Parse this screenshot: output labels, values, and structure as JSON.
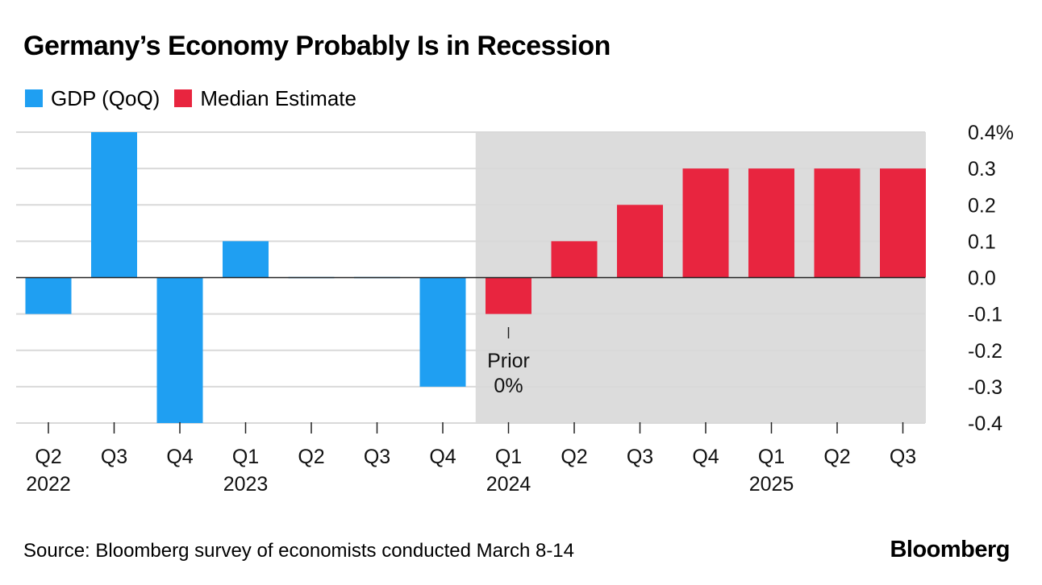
{
  "title": "Germany’s Economy Probably Is in Recession",
  "source": "Source: Bloomberg survey of economists conducted March 8-14",
  "brand": "Bloomberg",
  "colors": {
    "gdp": "#1f9ff2",
    "estimate": "#e8253f",
    "shade": "#dcdcdc",
    "grid": "#d9d9d9"
  },
  "chart_data": {
    "type": "bar",
    "title": "Germany’s Economy Probably Is in Recession",
    "xlabel": "",
    "ylabel": "",
    "ylim": [
      -0.4,
      0.4
    ],
    "yticks": [
      {
        "value": 0.4,
        "label": "0.4%"
      },
      {
        "value": 0.3,
        "label": "0.3"
      },
      {
        "value": 0.2,
        "label": "0.2"
      },
      {
        "value": 0.1,
        "label": "0.1"
      },
      {
        "value": 0.0,
        "label": "0.0"
      },
      {
        "value": -0.1,
        "label": "-0.1"
      },
      {
        "value": -0.2,
        "label": "-0.2"
      },
      {
        "value": -0.3,
        "label": "-0.3"
      },
      {
        "value": -0.4,
        "label": "-0.4"
      }
    ],
    "categories": [
      "Q2",
      "Q3",
      "Q4",
      "Q1",
      "Q2",
      "Q3",
      "Q4",
      "Q1",
      "Q2",
      "Q3",
      "Q4",
      "Q1",
      "Q2",
      "Q3"
    ],
    "years": [
      {
        "label": "2022",
        "index": 0
      },
      {
        "label": "2023",
        "index": 3
      },
      {
        "label": "2024",
        "index": 7
      },
      {
        "label": "2025",
        "index": 11
      }
    ],
    "series": [
      {
        "name": "GDP (QoQ)",
        "color": "#1f9ff2",
        "values": [
          -0.1,
          0.4,
          -0.4,
          0.1,
          0.0,
          0.0,
          -0.3,
          null,
          null,
          null,
          null,
          null,
          null,
          null
        ]
      },
      {
        "name": "Median Estimate",
        "color": "#e8253f",
        "values": [
          null,
          null,
          null,
          null,
          null,
          null,
          null,
          -0.1,
          0.1,
          0.2,
          0.3,
          0.3,
          0.3,
          0.3
        ]
      }
    ],
    "shaded_range": [
      7,
      13
    ],
    "annotation": {
      "index": 7,
      "lines": [
        "Prior",
        "0%"
      ]
    }
  }
}
